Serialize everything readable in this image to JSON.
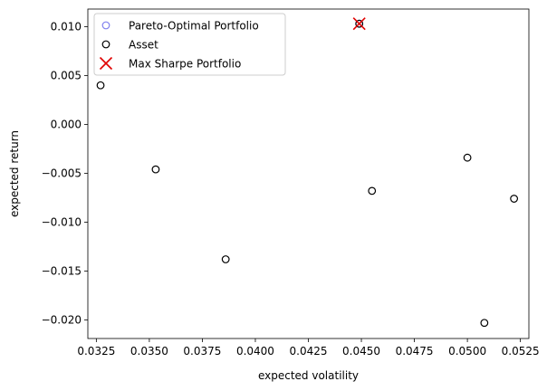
{
  "chart_data": {
    "type": "scatter",
    "xlabel": "expected volatility",
    "ylabel": "expected return",
    "xlim": [
      0.0321,
      0.0529
    ],
    "ylim": [
      -0.0219,
      0.0118
    ],
    "xticks": [
      0.0325,
      0.035,
      0.0375,
      0.04,
      0.0425,
      0.045,
      0.0475,
      0.05,
      0.0525
    ],
    "xtick_labels": [
      "0.0325",
      "0.0350",
      "0.0375",
      "0.0400",
      "0.0425",
      "0.0450",
      "0.0475",
      "0.0500",
      "0.0525"
    ],
    "yticks": [
      -0.02,
      -0.015,
      -0.01,
      -0.005,
      0.0,
      0.005,
      0.01
    ],
    "ytick_labels": [
      "−0.020",
      "−0.015",
      "−0.010",
      "−0.005",
      "0.000",
      "0.005",
      "0.010"
    ],
    "grid": false,
    "legend_position": "top-left",
    "series": [
      {
        "name": "Pareto-Optimal Portfolio",
        "marker": "circle-open",
        "color": "#8080ee",
        "points": [
          {
            "x": 0.0449,
            "y": 0.0103
          }
        ]
      },
      {
        "name": "Asset",
        "marker": "circle-open",
        "color": "#000000",
        "points": [
          {
            "x": 0.0327,
            "y": 0.004
          },
          {
            "x": 0.0353,
            "y": -0.0046
          },
          {
            "x": 0.0386,
            "y": -0.0138
          },
          {
            "x": 0.0449,
            "y": 0.0103
          },
          {
            "x": 0.0455,
            "y": -0.0068
          },
          {
            "x": 0.05,
            "y": -0.0034
          },
          {
            "x": 0.0508,
            "y": -0.0203
          },
          {
            "x": 0.0522,
            "y": -0.0076
          }
        ]
      },
      {
        "name": "Max Sharpe Portfolio",
        "marker": "x",
        "color": "#e00000",
        "points": [
          {
            "x": 0.0449,
            "y": 0.0103
          }
        ]
      }
    ]
  }
}
